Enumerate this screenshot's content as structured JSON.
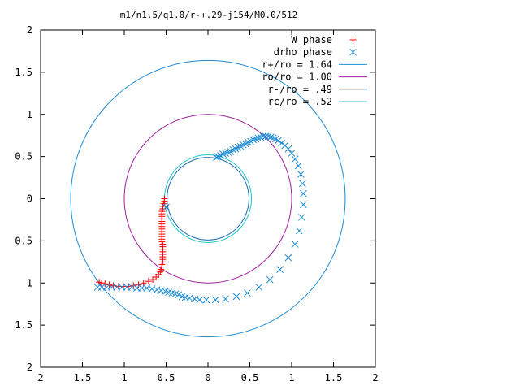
{
  "chart_data": {
    "type": "scatter",
    "title": "m1/n1.5/q1.0/r-+.29-j154/M0.0/512",
    "xlabel": "",
    "ylabel": "",
    "xlim": [
      2,
      -2
    ],
    "ylim": [
      -2,
      2
    ],
    "xticks": [
      {
        "value": 2,
        "label": "2"
      },
      {
        "value": 1.5,
        "label": "1.5"
      },
      {
        "value": 1,
        "label": "1"
      },
      {
        "value": 0.5,
        "label": "0.5"
      },
      {
        "value": 0,
        "label": "0"
      },
      {
        "value": -0.5,
        "label": "0.5"
      },
      {
        "value": -1,
        "label": "1"
      },
      {
        "value": -1.5,
        "label": "1.5"
      },
      {
        "value": -2,
        "label": "2"
      }
    ],
    "yticks": [
      {
        "value": 2,
        "label": "2"
      },
      {
        "value": 1.5,
        "label": "1.5"
      },
      {
        "value": 1,
        "label": "1"
      },
      {
        "value": 0.5,
        "label": "0.5"
      },
      {
        "value": 0,
        "label": "0"
      },
      {
        "value": -0.5,
        "label": "0.5"
      },
      {
        "value": -1,
        "label": "1"
      },
      {
        "value": -1.5,
        "label": "1.5"
      },
      {
        "value": -2,
        "label": "2"
      }
    ],
    "grid": false,
    "legend_position": "top-right",
    "circles": [
      {
        "name": "r+/ro = 1.64",
        "radius": 1.64,
        "color": "#1e8bd3"
      },
      {
        "name": "ro/ro = 1.00",
        "radius": 1.0,
        "color": "#a020a0"
      },
      {
        "name": "r-/ro = .49",
        "radius": 0.49,
        "color": "#1e6bb5"
      },
      {
        "name": "rc/ro = .52",
        "radius": 0.52,
        "color": "#20c8c8"
      }
    ],
    "series": [
      {
        "name": "W phase",
        "marker": "+",
        "color": "#ff0000",
        "points": [
          [
            0.52,
            0.0
          ],
          [
            0.52,
            -0.03
          ],
          [
            0.53,
            -0.06
          ],
          [
            0.54,
            -0.09
          ],
          [
            0.54,
            -0.12
          ],
          [
            0.55,
            -0.15
          ],
          [
            0.55,
            -0.18
          ],
          [
            0.55,
            -0.21
          ],
          [
            0.55,
            -0.24
          ],
          [
            0.55,
            -0.27
          ],
          [
            0.55,
            -0.3
          ],
          [
            0.55,
            -0.33
          ],
          [
            0.55,
            -0.36
          ],
          [
            0.55,
            -0.39
          ],
          [
            0.55,
            -0.42
          ],
          [
            0.55,
            -0.45
          ],
          [
            0.55,
            -0.48
          ],
          [
            0.55,
            -0.51
          ],
          [
            0.54,
            -0.54
          ],
          [
            0.54,
            -0.57
          ],
          [
            0.54,
            -0.6
          ],
          [
            0.54,
            -0.63
          ],
          [
            0.54,
            -0.66
          ],
          [
            0.54,
            -0.69
          ],
          [
            0.54,
            -0.72
          ],
          [
            0.54,
            -0.75
          ],
          [
            0.55,
            -0.78
          ],
          [
            0.55,
            -0.81
          ],
          [
            0.56,
            -0.84
          ],
          [
            0.57,
            -0.87
          ],
          [
            0.59,
            -0.9
          ],
          [
            0.62,
            -0.93
          ],
          [
            0.66,
            -0.96
          ],
          [
            0.71,
            -0.98
          ],
          [
            0.77,
            -1.0
          ],
          [
            0.83,
            -1.02
          ],
          [
            0.89,
            -1.03
          ],
          [
            0.95,
            -1.04
          ],
          [
            1.01,
            -1.04
          ],
          [
            1.07,
            -1.04
          ],
          [
            1.13,
            -1.03
          ],
          [
            1.18,
            -1.02
          ],
          [
            1.23,
            -1.01
          ],
          [
            1.27,
            -1.0
          ],
          [
            1.3,
            -0.99
          ]
        ]
      },
      {
        "name": "drho phase",
        "marker": "x",
        "color": "#1e8bd3",
        "points": [
          [
            0.5,
            -0.1
          ],
          [
            -0.1,
            0.49
          ],
          [
            -0.12,
            0.5
          ],
          [
            -0.15,
            0.51
          ],
          [
            -0.18,
            0.53
          ],
          [
            -0.21,
            0.54
          ],
          [
            -0.24,
            0.55
          ],
          [
            -0.27,
            0.56
          ],
          [
            -0.3,
            0.58
          ],
          [
            -0.33,
            0.59
          ],
          [
            -0.36,
            0.61
          ],
          [
            -0.39,
            0.62
          ],
          [
            -0.42,
            0.64
          ],
          [
            -0.45,
            0.65
          ],
          [
            -0.48,
            0.67
          ],
          [
            -0.51,
            0.68
          ],
          [
            -0.54,
            0.7
          ],
          [
            -0.57,
            0.71
          ],
          [
            -0.6,
            0.72
          ],
          [
            -0.63,
            0.73
          ],
          [
            -0.66,
            0.74
          ],
          [
            -0.69,
            0.74
          ],
          [
            -0.72,
            0.74
          ],
          [
            -0.75,
            0.73
          ],
          [
            -0.78,
            0.72
          ],
          [
            -0.81,
            0.71
          ],
          [
            -0.84,
            0.69
          ],
          [
            -0.88,
            0.66
          ],
          [
            -0.92,
            0.63
          ],
          [
            -0.96,
            0.59
          ],
          [
            -1.0,
            0.54
          ],
          [
            -1.04,
            0.47
          ],
          [
            -1.08,
            0.39
          ],
          [
            -1.11,
            0.29
          ],
          [
            -1.13,
            0.18
          ],
          [
            -1.14,
            0.06
          ],
          [
            -1.14,
            -0.07
          ],
          [
            -1.12,
            -0.22
          ],
          [
            -1.09,
            -0.38
          ],
          [
            -1.04,
            -0.54
          ],
          [
            -0.96,
            -0.7
          ],
          [
            -0.86,
            -0.84
          ],
          [
            -0.74,
            -0.96
          ],
          [
            -0.61,
            -1.05
          ],
          [
            -0.47,
            -1.12
          ],
          [
            -0.34,
            -1.16
          ],
          [
            -0.21,
            -1.19
          ],
          [
            -0.09,
            -1.2
          ],
          [
            0.02,
            -1.2
          ],
          [
            0.1,
            -1.2
          ],
          [
            0.16,
            -1.19
          ],
          [
            0.22,
            -1.18
          ],
          [
            0.27,
            -1.17
          ],
          [
            0.31,
            -1.16
          ],
          [
            0.35,
            -1.14
          ],
          [
            0.39,
            -1.13
          ],
          [
            0.43,
            -1.12
          ],
          [
            0.47,
            -1.11
          ],
          [
            0.51,
            -1.1
          ],
          [
            0.56,
            -1.09
          ],
          [
            0.61,
            -1.08
          ],
          [
            0.67,
            -1.07
          ],
          [
            0.73,
            -1.06
          ],
          [
            0.79,
            -1.06
          ],
          [
            0.85,
            -1.06
          ],
          [
            0.91,
            -1.05
          ],
          [
            0.97,
            -1.05
          ],
          [
            1.03,
            -1.05
          ],
          [
            1.09,
            -1.05
          ],
          [
            1.15,
            -1.05
          ],
          [
            1.21,
            -1.05
          ],
          [
            1.27,
            -1.05
          ],
          [
            1.32,
            -1.05
          ]
        ]
      }
    ]
  }
}
